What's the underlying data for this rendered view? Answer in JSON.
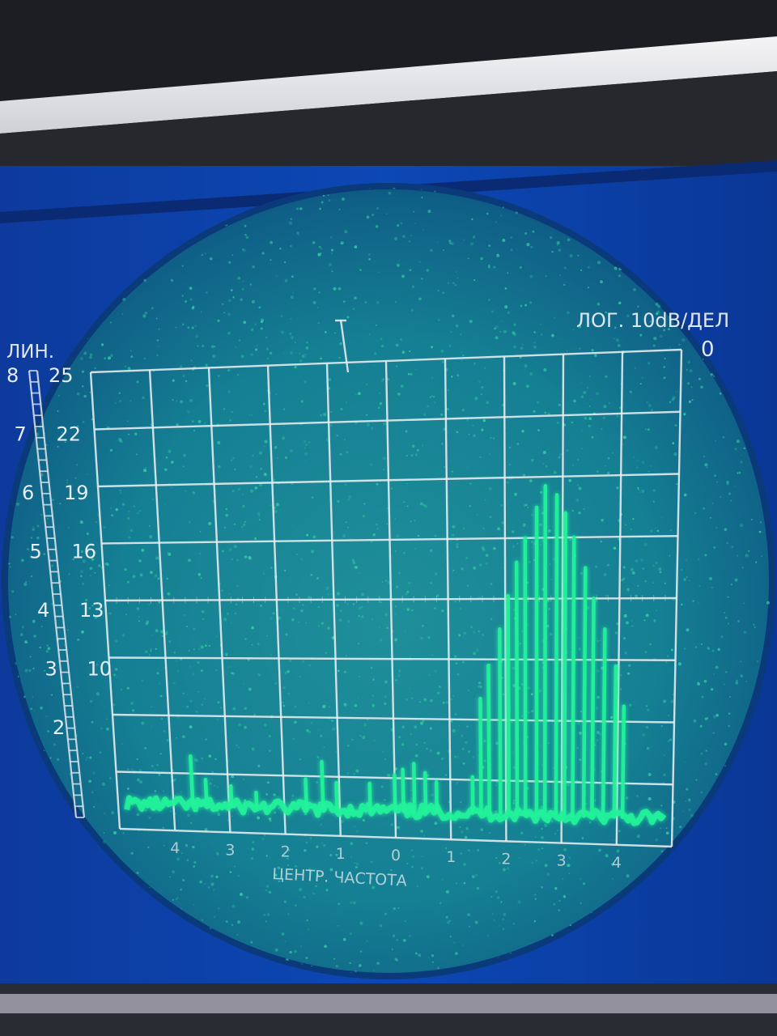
{
  "bezel": {
    "colors": {
      "bezel_dark": "#1b1d22",
      "bezel_strip": "#e8e8ea",
      "panel_blue": "#0b3fa8",
      "phosphor_green": "#21f29a"
    }
  },
  "display": {
    "log_label": "ЛОГ. 10dB/ДЕЛ",
    "log_zero": "0",
    "lin_label": "ЛИН.",
    "x_caption": "ЦЕНТР. ЧАСТОТА"
  },
  "scale_lin": [
    "8",
    "7",
    "6",
    "5",
    "4",
    "3",
    "2"
  ],
  "scale_db": [
    "25",
    "22",
    "19",
    "16",
    "13",
    "10"
  ],
  "x_ticks": [
    "4",
    "3",
    "2",
    "1",
    "0",
    "1",
    "2",
    "3",
    "4"
  ],
  "chart_data": {
    "type": "bar",
    "x_divisions": [
      -5,
      5
    ],
    "y_divisions": [
      0,
      8
    ],
    "grid": true,
    "noise_floor": 0.45,
    "spectral_lines": [
      {
        "x": -3.65,
        "y": 1.3
      },
      {
        "x": -3.4,
        "y": 0.9
      },
      {
        "x": -2.95,
        "y": 0.8
      },
      {
        "x": -2.5,
        "y": 0.7
      },
      {
        "x": -1.6,
        "y": 0.95
      },
      {
        "x": -1.3,
        "y": 1.25
      },
      {
        "x": -1.05,
        "y": 0.9
      },
      {
        "x": -0.45,
        "y": 0.9
      },
      {
        "x": 0.0,
        "y": 1.05
      },
      {
        "x": 0.15,
        "y": 1.15
      },
      {
        "x": 0.35,
        "y": 1.25
      },
      {
        "x": 0.55,
        "y": 1.1
      },
      {
        "x": 0.75,
        "y": 0.95
      },
      {
        "x": 1.4,
        "y": 1.05
      },
      {
        "x": 1.55,
        "y": 2.35
      },
      {
        "x": 1.7,
        "y": 2.9
      },
      {
        "x": 1.9,
        "y": 3.5
      },
      {
        "x": 2.05,
        "y": 4.05
      },
      {
        "x": 2.2,
        "y": 4.6
      },
      {
        "x": 2.35,
        "y": 5.0
      },
      {
        "x": 2.55,
        "y": 5.5
      },
      {
        "x": 2.7,
        "y": 5.85
      },
      {
        "x": 2.9,
        "y": 5.7
      },
      {
        "x": 3.05,
        "y": 5.4
      },
      {
        "x": 3.2,
        "y": 5.0
      },
      {
        "x": 3.4,
        "y": 4.5
      },
      {
        "x": 3.55,
        "y": 4.0
      },
      {
        "x": 3.75,
        "y": 3.5
      },
      {
        "x": 3.95,
        "y": 2.9
      },
      {
        "x": 4.1,
        "y": 2.25
      }
    ]
  }
}
